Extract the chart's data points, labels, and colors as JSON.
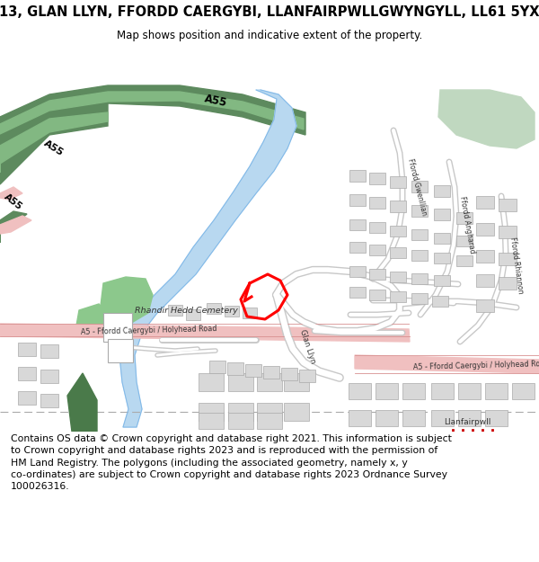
{
  "title": "13, GLAN LLYN, FFORDD CAERGYBI, LLANFAIRPWLLGWYNGYLL, LL61 5YX",
  "subtitle": "Map shows position and indicative extent of the property.",
  "footer": "Contains OS data © Crown copyright and database right 2021. This information is subject\nto Crown copyright and database rights 2023 and is reproduced with the permission of\nHM Land Registry. The polygons (including the associated geometry, namely x, y\nco-ordinates) are subject to Crown copyright and database rights 2023 Ordnance Survey\n100026316.",
  "bg_color": "#ffffff",
  "title_fontsize": 10.5,
  "subtitle_fontsize": 8.5,
  "footer_fontsize": 7.8,
  "map_bg": "#f8f8f8"
}
